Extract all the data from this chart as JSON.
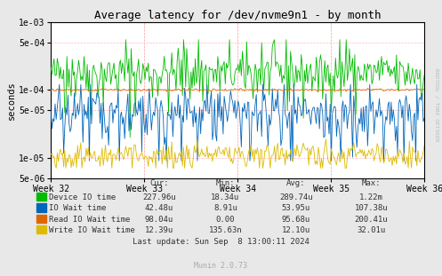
{
  "title": "Average latency for /dev/nvme9n1 - by month",
  "ylabel": "seconds",
  "xlabel_ticks": [
    "Week 32",
    "Week 33",
    "Week 34",
    "Week 35",
    "Week 36"
  ],
  "bg_color": "#e8e8e8",
  "plot_bg_color": "#ffffff",
  "grid_color_major": "#ffaaaa",
  "grid_color_minor": "#ffcccc",
  "y_min": 5e-06,
  "y_max": 0.001,
  "legend": [
    {
      "label": "Device IO time",
      "color": "#00bb00"
    },
    {
      "label": "IO Wait time",
      "color": "#0066bb"
    },
    {
      "label": "Read IO Wait time",
      "color": "#dd6600"
    },
    {
      "label": "Write IO Wait time",
      "color": "#ddbb00"
    }
  ],
  "table_headers": [
    "Cur:",
    "Min:",
    "Avg:",
    "Max:"
  ],
  "table_rows": [
    [
      "Device IO time",
      "227.96u",
      "18.34u",
      "289.74u",
      "1.22m"
    ],
    [
      "IO Wait time",
      "42.48u",
      "8.91u",
      "53.95u",
      "107.38u"
    ],
    [
      "Read IO Wait time",
      "98.04u",
      "0.00",
      "95.68u",
      "200.41u"
    ],
    [
      "Write IO Wait time",
      "12.39u",
      "135.63n",
      "12.10u",
      "32.01u"
    ]
  ],
  "footer": "Last update: Sun Sep  8 13:00:11 2024",
  "munin_version": "Munin 2.0.73",
  "rrdtool_label": "RRDTOOL / TOBI OETIKER",
  "n_points": 350,
  "seed": 42
}
